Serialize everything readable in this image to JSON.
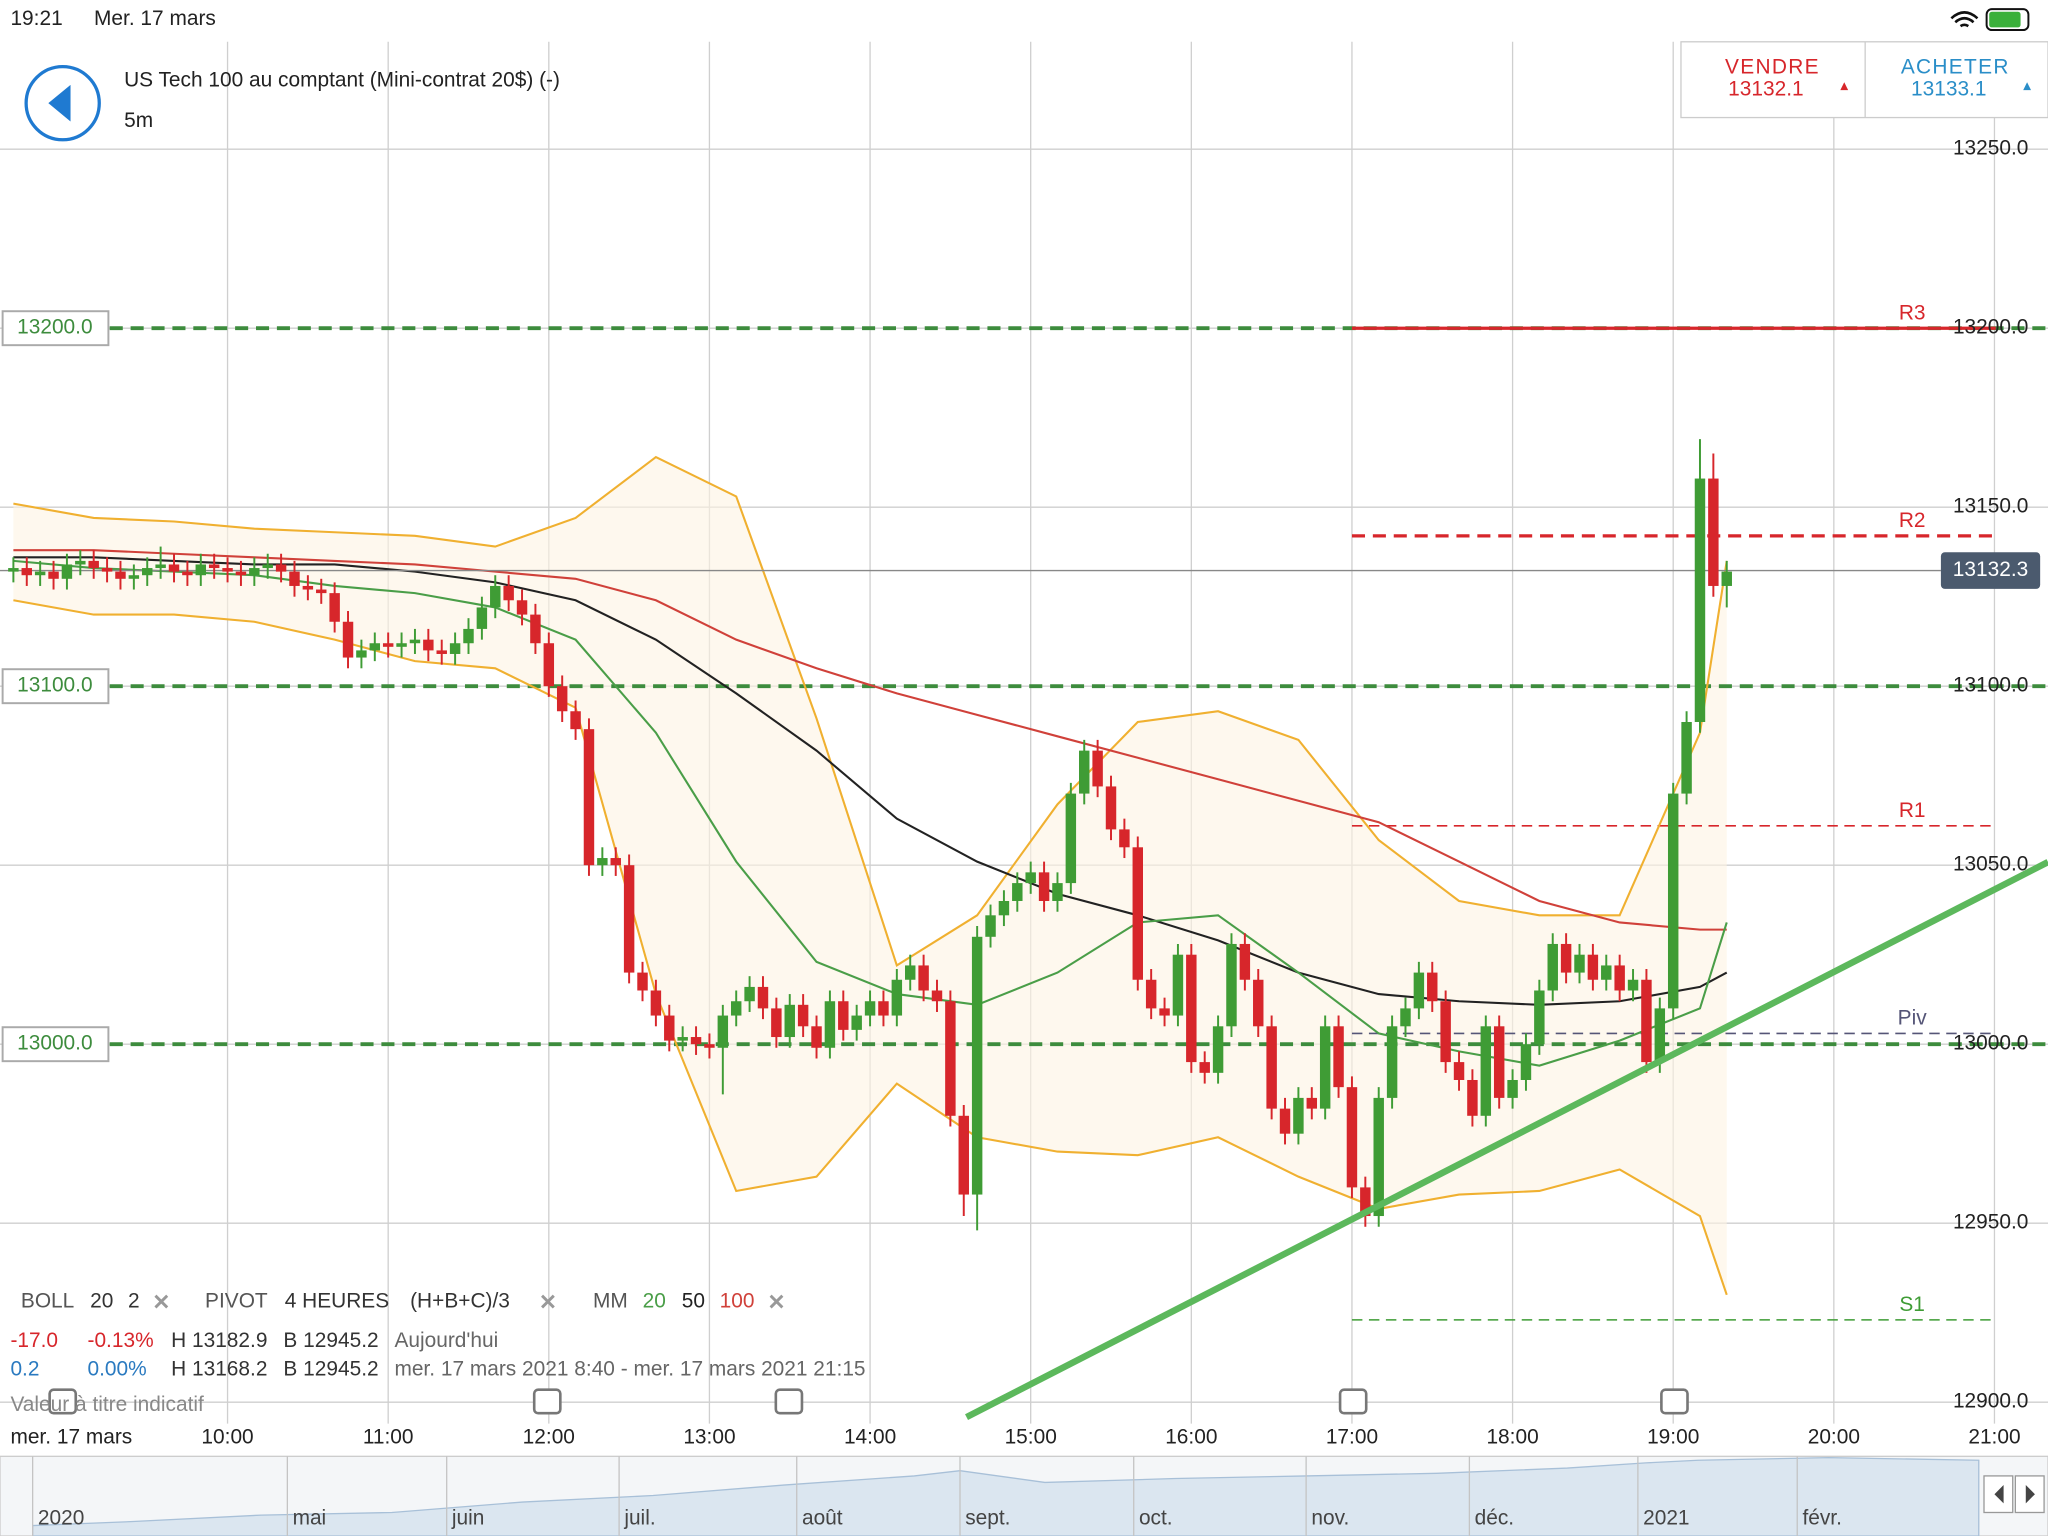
{
  "status_bar": {
    "time": "19:21",
    "date": "Mer. 17 mars"
  },
  "header": {
    "title": "US Tech 100 au comptant (Mini-contrat 20$) (-)",
    "timeframe": "5m"
  },
  "trade": {
    "sell_label": "VENDRE",
    "sell_price": 13132.1,
    "buy_label": "ACHETER",
    "buy_price": 13133.1
  },
  "indicators": {
    "boll": {
      "name": "BOLL",
      "period": "20",
      "deviation": "2"
    },
    "pivot": {
      "name": "PIVOT",
      "period": "4 HEURES",
      "formula": "(H+B+C)/3"
    },
    "mm": {
      "name": "MM",
      "fast": "20",
      "mid": "50",
      "slow": "100"
    }
  },
  "stats": [
    [
      "-17.0",
      "-0.13%",
      "H 13182.9",
      "B 12945.2",
      "Aujourd'hui"
    ],
    [
      "0.2",
      "0.00%",
      "H 13168.2",
      "B 12945.2",
      "mer. 17 mars 2021 8:40 - mer. 17 mars 2021 21:15"
    ]
  ],
  "disclaimer": "Valeur à titre indicatif",
  "date_badge": "mer. 17 mars",
  "navigator": {
    "labels": [
      "2020",
      "mai",
      "juin",
      "juil.",
      "août",
      "sept.",
      "oct.",
      "nov.",
      "déc.",
      "2021",
      "févr."
    ]
  },
  "chart_data": {
    "type": "candlestick",
    "x": [
      "8:40",
      "8:45",
      "8:50",
      "8:55",
      "9:00",
      "9:05",
      "9:10",
      "9:15",
      "9:20",
      "9:25",
      "9:30",
      "9:35",
      "9:40",
      "9:45",
      "9:50",
      "9:55",
      "10:00",
      "10:05",
      "10:10",
      "10:15",
      "10:20",
      "10:25",
      "10:30",
      "10:35",
      "10:40",
      "10:45",
      "10:50",
      "10:55",
      "11:00",
      "11:05",
      "11:10",
      "11:15",
      "11:20",
      "11:25",
      "11:30",
      "11:35",
      "11:40",
      "11:45",
      "11:50",
      "11:55",
      "12:00",
      "12:05",
      "12:10",
      "12:15",
      "12:20",
      "12:25",
      "12:30",
      "12:35",
      "12:40",
      "12:45",
      "12:50",
      "12:55",
      "13:00",
      "13:05",
      "13:10",
      "13:15",
      "13:20",
      "13:25",
      "13:30",
      "13:35",
      "13:40",
      "13:45",
      "13:50",
      "13:55",
      "14:00",
      "14:05",
      "14:10",
      "14:15",
      "14:20",
      "14:25",
      "14:30",
      "14:35",
      "14:40",
      "14:45",
      "14:50",
      "14:55",
      "15:00",
      "15:05",
      "15:10",
      "15:15",
      "15:20",
      "15:25",
      "15:30",
      "15:35",
      "15:40",
      "15:45",
      "15:50",
      "15:55",
      "16:00",
      "16:05",
      "16:10",
      "16:15",
      "16:20",
      "16:25",
      "16:30",
      "16:35",
      "16:40",
      "16:45",
      "16:50",
      "16:55",
      "17:00",
      "17:05",
      "17:10",
      "17:15",
      "17:20",
      "17:25",
      "17:30",
      "17:35",
      "17:40",
      "17:45",
      "17:50",
      "17:55",
      "18:00",
      "18:05",
      "18:10",
      "18:15",
      "18:20",
      "18:25",
      "18:30",
      "18:35",
      "18:40",
      "18:45",
      "18:50",
      "18:55",
      "19:00",
      "19:05",
      "19:10",
      "19:15",
      "19:20"
    ],
    "open": [
      13132,
      13133,
      13131,
      13132,
      13130,
      13134,
      13135,
      13133,
      13132,
      13130,
      13131,
      13133,
      13134,
      13132,
      13131,
      13134,
      13133,
      13132,
      13131,
      13133,
      13134,
      13132,
      13128,
      13127,
      13126,
      13118,
      13108,
      13110,
      13112,
      13111,
      13112,
      13113,
      13110,
      13109,
      13112,
      13116,
      13122,
      13128,
      13124,
      13120,
      13112,
      13100,
      13093,
      13088,
      13050,
      13052,
      13050,
      13020,
      13015,
      13008,
      13001,
      13002,
      13000,
      12999,
      13008,
      13012,
      13016,
      13010,
      13002,
      13011,
      13005,
      12999,
      13012,
      13004,
      13008,
      13012,
      13008,
      13018,
      13022,
      13015,
      13012,
      12980,
      12958,
      13030,
      13036,
      13040,
      13045,
      13048,
      13040,
      13045,
      13070,
      13082,
      13072,
      13060,
      13055,
      13018,
      13010,
      13008,
      13025,
      12995,
      12992,
      13005,
      13028,
      13018,
      13005,
      12982,
      12975,
      12985,
      12982,
      13005,
      12988,
      12960,
      12952,
      12985,
      13005,
      13010,
      13020,
      13012,
      12995,
      12990,
      12980,
      13005,
      12985,
      12990,
      13000,
      13015,
      13028,
      13020,
      13025,
      13018,
      13022,
      13015,
      13018,
      12995,
      13010,
      13070,
      13090,
      13158,
      13128
    ],
    "high": [
      13136,
      13136,
      13135,
      13135,
      13137,
      13138,
      13138,
      13136,
      13135,
      13134,
      13136,
      13139,
      13137,
      13135,
      13137,
      13137,
      13136,
      13135,
      13136,
      13137,
      13137,
      13135,
      13131,
      13130,
      13129,
      13121,
      13113,
      13115,
      13115,
      13115,
      13116,
      13116,
      13113,
      13115,
      13119,
      13125,
      13131,
      13131,
      13127,
      13123,
      13115,
      13103,
      13096,
      13091,
      13055,
      13055,
      13053,
      13023,
      13018,
      13011,
      13005,
      13005,
      13003,
      13011,
      13015,
      13019,
      13019,
      13013,
      13014,
      13014,
      13008,
      13015,
      13015,
      13011,
      13015,
      13015,
      13021,
      13025,
      13025,
      13018,
      13015,
      12983,
      13033,
      13039,
      13043,
      13048,
      13051,
      13051,
      13048,
      13073,
      13085,
      13085,
      13075,
      13063,
      13058,
      13021,
      13013,
      13028,
      13028,
      12998,
      13008,
      13031,
      13031,
      13021,
      13008,
      12985,
      12988,
      12988,
      13008,
      13008,
      12991,
      12963,
      12988,
      13008,
      13013,
      13023,
      13023,
      13015,
      12998,
      12993,
      13008,
      13008,
      12993,
      13003,
      13018,
      13031,
      13031,
      13028,
      13028,
      13025,
      13025,
      13021,
      13021,
      13013,
      13073,
      13093,
      13169,
      13165,
      13135
    ],
    "low": [
      13129,
      13128,
      13128,
      13127,
      13127,
      13131,
      13130,
      13129,
      13127,
      13127,
      13128,
      13130,
      13129,
      13128,
      13128,
      13130,
      13129,
      13128,
      13128,
      13130,
      13129,
      13125,
      13124,
      13123,
      13115,
      13105,
      13105,
      13107,
      13108,
      13108,
      13109,
      13107,
      13106,
      13106,
      13109,
      13113,
      13119,
      13121,
      13117,
      13109,
      13097,
      13090,
      13085,
      13047,
      13047,
      13047,
      13017,
      13012,
      13005,
      12998,
      12998,
      12997,
      12996,
      12986,
      13005,
      13009,
      13007,
      12999,
      12999,
      13002,
      12996,
      12996,
      13001,
      13001,
      13005,
      13005,
      13005,
      13015,
      13012,
      13009,
      12977,
      12952,
      12948,
      13027,
      13033,
      13037,
      13042,
      13037,
      13037,
      13042,
      13067,
      13069,
      13057,
      13052,
      13015,
      13007,
      13005,
      13005,
      12992,
      12989,
      12989,
      13002,
      13015,
      13002,
      12979,
      12972,
      12972,
      12979,
      12979,
      12985,
      12957,
      12949,
      12949,
      12982,
      13002,
      13007,
      13009,
      12992,
      12987,
      12977,
      12977,
      12982,
      12982,
      12987,
      12997,
      13012,
      13017,
      13017,
      13015,
      13015,
      13012,
      13012,
      12992,
      12992,
      13007,
      13067,
      13087,
      13125,
      13122
    ],
    "close": [
      13133,
      13131,
      13132,
      13130,
      13134,
      13135,
      13133,
      13132,
      13130,
      13131,
      13133,
      13134,
      13132,
      13131,
      13134,
      13133,
      13132,
      13131,
      13133,
      13134,
      13132,
      13128,
      13127,
      13126,
      13118,
      13108,
      13110,
      13112,
      13111,
      13112,
      13113,
      13110,
      13109,
      13112,
      13116,
      13122,
      13128,
      13124,
      13120,
      13112,
      13100,
      13093,
      13088,
      13050,
      13052,
      13050,
      13020,
      13015,
      13008,
      13001,
      13002,
      13000,
      12999,
      13008,
      13012,
      13016,
      13010,
      13002,
      13011,
      13005,
      12999,
      13012,
      13004,
      13008,
      13012,
      13008,
      13018,
      13022,
      13015,
      13012,
      12980,
      12958,
      13030,
      13036,
      13040,
      13045,
      13048,
      13040,
      13045,
      13070,
      13082,
      13072,
      13060,
      13055,
      13018,
      13010,
      13008,
      13025,
      12995,
      12992,
      13005,
      13028,
      13018,
      13005,
      12982,
      12975,
      12985,
      12982,
      13005,
      12988,
      12960,
      12952,
      12985,
      13005,
      13010,
      13020,
      13012,
      12995,
      12990,
      12980,
      13005,
      12985,
      12990,
      13000,
      13015,
      13028,
      13020,
      13025,
      13018,
      13022,
      13015,
      13018,
      12995,
      13010,
      13070,
      13090,
      13158,
      13128,
      13132
    ],
    "up_color": "#3f9c35",
    "down_color": "#d7262b",
    "overlays": {
      "x": [
        "8:40",
        "9:10",
        "9:40",
        "10:10",
        "10:40",
        "11:10",
        "11:40",
        "12:10",
        "12:40",
        "13:10",
        "13:40",
        "14:10",
        "14:40",
        "15:10",
        "15:40",
        "16:10",
        "16:40",
        "17:10",
        "17:40",
        "18:10",
        "18:40",
        "19:10",
        "19:20"
      ],
      "boll_color": "#f0b030",
      "boll_upper": [
        13151,
        13147,
        13146,
        13144,
        13143,
        13142,
        13139,
        13147,
        13164,
        13153,
        13091,
        13022,
        13036,
        13067,
        13090,
        13093,
        13085,
        13057,
        13040,
        13036,
        13036,
        13087,
        13135
      ],
      "boll_lower": [
        13124,
        13120,
        13120,
        13118,
        13113,
        13107,
        13105,
        13094,
        13014,
        12959,
        12963,
        12989,
        12974,
        12970,
        12969,
        12974,
        12963,
        12954,
        12958,
        12959,
        12965,
        12952,
        12930
      ],
      "mm": [
        {
          "color": "#4a9e48",
          "values": [
            13135,
            13133,
            13132,
            13131,
            13128,
            13126,
            13122,
            13113,
            13087,
            13051,
            13023,
            13014,
            13011,
            13020,
            13034,
            13036,
            13020,
            13003,
            12998,
            12994,
            13001,
            13010,
            13034
          ]
        },
        {
          "color": "#222222",
          "values": [
            13136,
            13136,
            13135,
            13134,
            13134,
            13132,
            13129,
            13124,
            13113,
            13098,
            13082,
            13063,
            13051,
            13042,
            13036,
            13029,
            13020,
            13014,
            13012,
            13011,
            13012,
            13016,
            13020
          ]
        },
        {
          "color": "#d0413a",
          "values": [
            13138,
            13138,
            13137,
            13136,
            13135,
            13134,
            13132,
            13130,
            13124,
            13113,
            13105,
            13098,
            13092,
            13086,
            13080,
            13074,
            13068,
            13062,
            13051,
            13040,
            13034,
            13032,
            13032
          ]
        }
      ]
    },
    "pivot_from": "17:00",
    "pivots": [
      {
        "name": "R3",
        "value": 13200,
        "color": "#d7262b"
      },
      {
        "name": "R2",
        "value": 13142,
        "color": "#d7262b"
      },
      {
        "name": "R1",
        "value": 13061,
        "color": "#d7262b"
      },
      {
        "name": "Piv",
        "value": 13003,
        "color": "#555577"
      },
      {
        "name": "S1",
        "value": 12923,
        "color": "#3f9c35"
      }
    ],
    "levels": [
      {
        "value": 13200,
        "label": "13200.0"
      },
      {
        "value": 13100,
        "label": "13100.0"
      },
      {
        "value": 13000,
        "label": "13000.0"
      }
    ],
    "current_price": 13132.3,
    "xlim": [
      "8:35",
      "21:20"
    ],
    "xticks": [
      "10:00",
      "11:00",
      "12:00",
      "13:00",
      "14:00",
      "15:00",
      "16:00",
      "17:00",
      "18:00",
      "19:00",
      "20:00",
      "21:00"
    ],
    "ylim": [
      12894,
      13280
    ],
    "yticks": [
      {
        "value": 12900,
        "label": "12900.0"
      },
      {
        "value": 12950,
        "label": "12950.0"
      },
      {
        "value": 13000,
        "label": "13000.0"
      },
      {
        "value": 13050,
        "label": "13050.0"
      },
      {
        "value": 13100,
        "label": "13100.0"
      },
      {
        "value": 13150,
        "label": "13150.0"
      },
      {
        "value": 13200,
        "label": "13200.0"
      },
      {
        "value": 13250,
        "label": "13250.0"
      }
    ],
    "grid": true
  }
}
